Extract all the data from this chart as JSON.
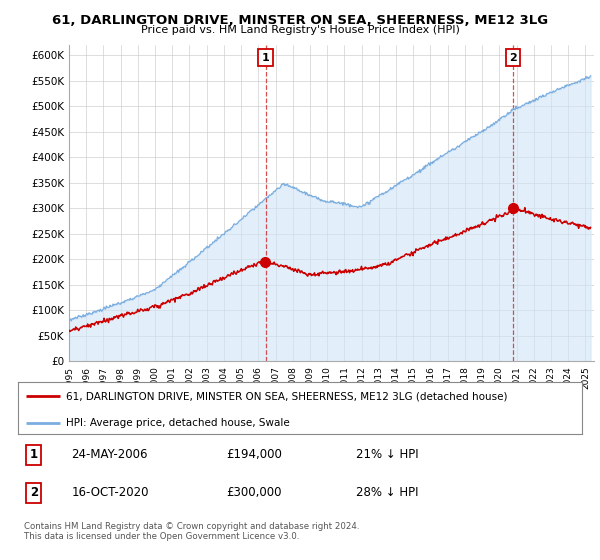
{
  "title": "61, DARLINGTON DRIVE, MINSTER ON SEA, SHEERNESS, ME12 3LG",
  "subtitle": "Price paid vs. HM Land Registry's House Price Index (HPI)",
  "ylim": [
    0,
    620000
  ],
  "yticks": [
    0,
    50000,
    100000,
    150000,
    200000,
    250000,
    300000,
    350000,
    400000,
    450000,
    500000,
    550000,
    600000
  ],
  "xlim_start": 1995.0,
  "xlim_end": 2025.5,
  "sale1_date": 2006.42,
  "sale1_price": 194000,
  "sale2_date": 2020.79,
  "sale2_price": 300000,
  "legend_red": "61, DARLINGTON DRIVE, MINSTER ON SEA, SHEERNESS, ME12 3LG (detached house)",
  "legend_blue": "HPI: Average price, detached house, Swale",
  "footer": "Contains HM Land Registry data © Crown copyright and database right 2024.\nThis data is licensed under the Open Government Licence v3.0.",
  "red_color": "#cc0000",
  "blue_color": "#7aade0",
  "blue_fill": "#d0e4f5",
  "grid_color": "#cccccc",
  "table_date1": "24-MAY-2006",
  "table_price1": "£194,000",
  "table_hpi1": "21% ↓ HPI",
  "table_date2": "16-OCT-2020",
  "table_price2": "£300,000",
  "table_hpi2": "28% ↓ HPI"
}
